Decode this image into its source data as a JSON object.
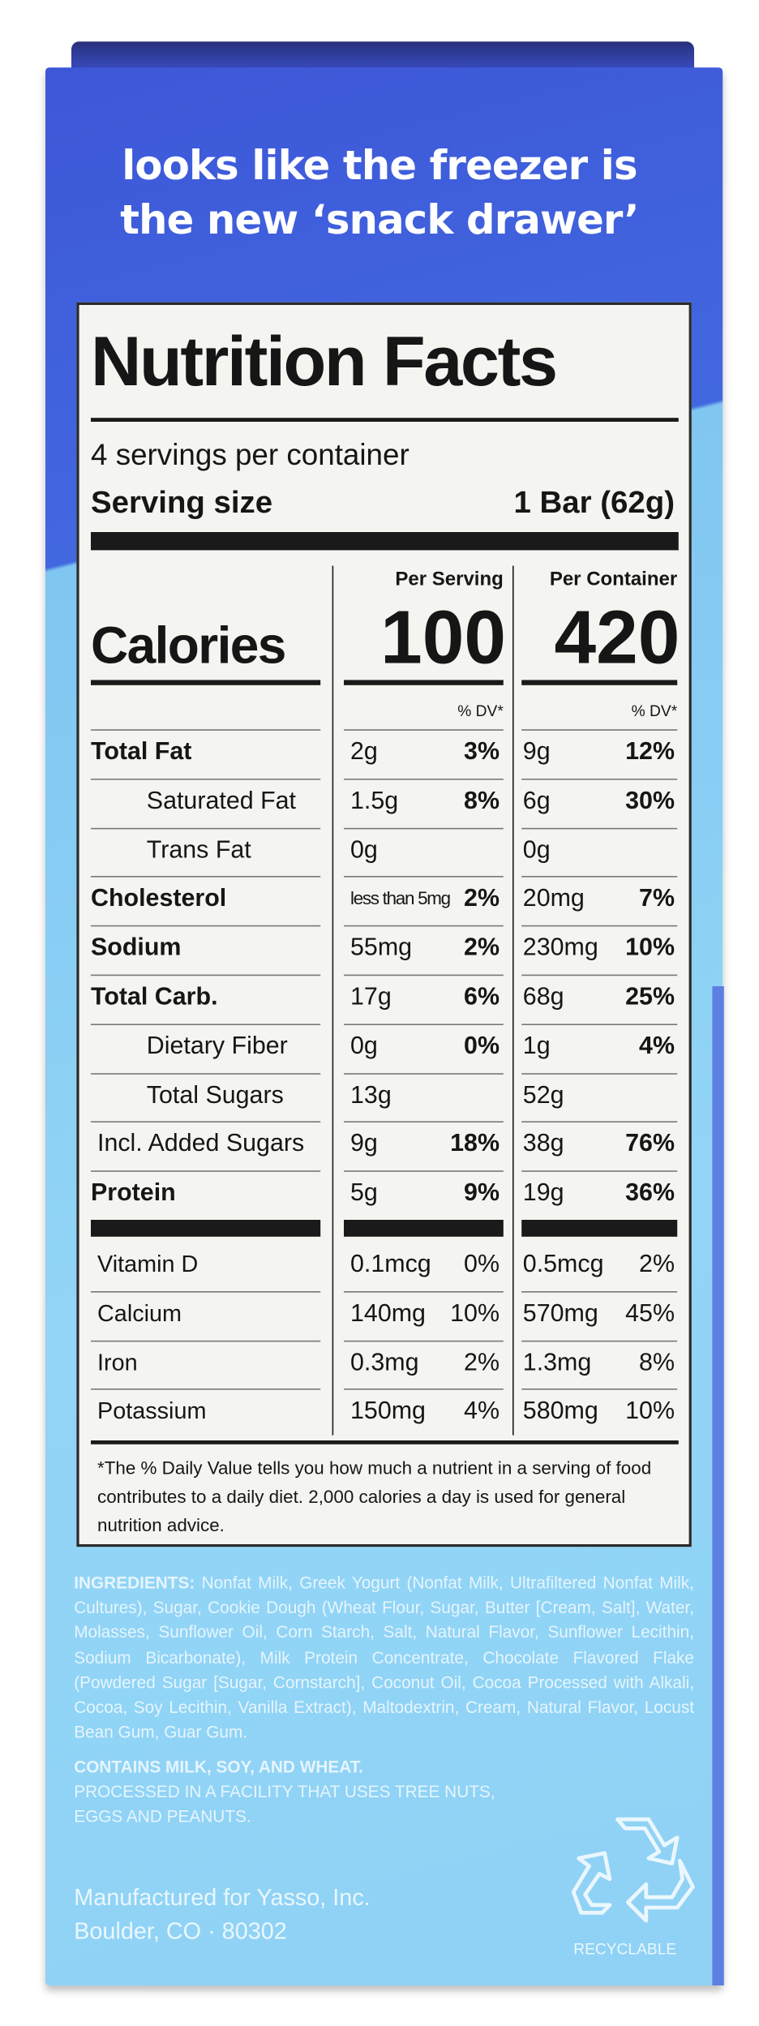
{
  "header": {
    "tagline": [
      "looks like the freezer is",
      "the new ‘snack drawer’"
    ]
  },
  "label": {
    "title": "Nutrition Facts",
    "servings": "4 servings per container",
    "serving_size_label": "Serving size",
    "serving_size_value": "1 Bar (62g)",
    "per_serving": "Per Serving",
    "per_container": "Per Container",
    "calories_label": "Calories",
    "calories_serving": "100",
    "calories_container": "420",
    "dv_header": "% DV*",
    "nutrients": [
      {
        "name": "Total Fat",
        "bold": true,
        "serving_amount": "2g",
        "serving_dv": "3%",
        "container_amount": "9g",
        "container_dv": "12%"
      },
      {
        "name": "Saturated Fat",
        "indent": true,
        "serving_amount": "1.5g",
        "serving_dv": "8%",
        "container_amount": "6g",
        "container_dv": "30%"
      },
      {
        "name": "Trans Fat",
        "indent": true,
        "serving_amount": "0g",
        "container_amount": "0g"
      },
      {
        "name": "Cholesterol",
        "bold": true,
        "serving_amount": "less than 5mg",
        "serving_dv": "2%",
        "container_amount": "20mg",
        "container_dv": "7%"
      },
      {
        "name": "Sodium",
        "bold": true,
        "serving_amount": "55mg",
        "serving_dv": "2%",
        "container_amount": "230mg",
        "container_dv": "10%"
      },
      {
        "name": "Total Carb.",
        "bold": true,
        "serving_amount": "17g",
        "serving_dv": "6%",
        "container_amount": "68g",
        "container_dv": "25%"
      },
      {
        "name": "Dietary Fiber",
        "indent": true,
        "serving_amount": "0g",
        "serving_dv": "0%",
        "container_amount": "1g",
        "container_dv": "4%"
      },
      {
        "name": "Total Sugars",
        "indent": true,
        "serving_amount": "13g",
        "container_amount": "52g"
      },
      {
        "name": "Incl. Added Sugars",
        "serving_amount": "9g",
        "serving_dv": "18%",
        "container_amount": "38g",
        "container_dv": "76%"
      },
      {
        "name": "Protein",
        "bold": true,
        "serving_amount": "5g",
        "serving_dv": "9%",
        "container_amount": "19g",
        "container_dv": "36%"
      }
    ],
    "vitamins": [
      {
        "name": "Vitamin D",
        "serving_amount": "0.1mcg",
        "serving_dv": "0%",
        "container_amount": "0.5mcg",
        "container_dv": "2%"
      },
      {
        "name": "Calcium",
        "serving_amount": "140mg",
        "serving_dv": "10%",
        "container_amount": "570mg",
        "container_dv": "45%"
      },
      {
        "name": "Iron",
        "serving_amount": "0.3mg",
        "serving_dv": "2%",
        "container_amount": "1.3mg",
        "container_dv": "8%"
      },
      {
        "name": "Potassium",
        "serving_amount": "150mg",
        "serving_dv": "4%",
        "container_amount": "580mg",
        "container_dv": "10%"
      }
    ],
    "footnote": "*The % Daily Value tells you how much a nutrient in a serving of food contributes to a daily diet. 2,000 calories a day is used for general nutrition advice."
  },
  "ingredients": {
    "label": "INGREDIENTS:",
    "text": "Nonfat Milk, Greek Yogurt (Nonfat Milk, Ultrafiltered Nonfat Milk, Cultures), Sugar, Cookie Dough (Wheat Flour, Sugar, Butter [Cream, Salt], Water, Molasses, Sunflower Oil, Corn Starch, Salt, Natural Flavor, Sunflower Lecithin, Sodium Bicarbonate), Milk Protein Concentrate, Chocolate Flavored Flake (Powdered Sugar [Sugar, Cornstarch], Coconut Oil, Cocoa Processed with Alkali, Cocoa, Soy Lecithin, Vanilla Extract), Maltodextrin, Cream, Natural Flavor, Locust Bean Gum, Guar Gum.",
    "allergens": "CONTAINS MILK, SOY, AND WHEAT.",
    "facility": "PROCESSED IN A FACILITY THAT USES TREE NUTS, EGGS AND PEANUTS."
  },
  "manufacturer": [
    "Manufactured for Yasso, Inc.",
    "Boulder, CO · 80302"
  ],
  "recyclable": "RECYCLABLE"
}
